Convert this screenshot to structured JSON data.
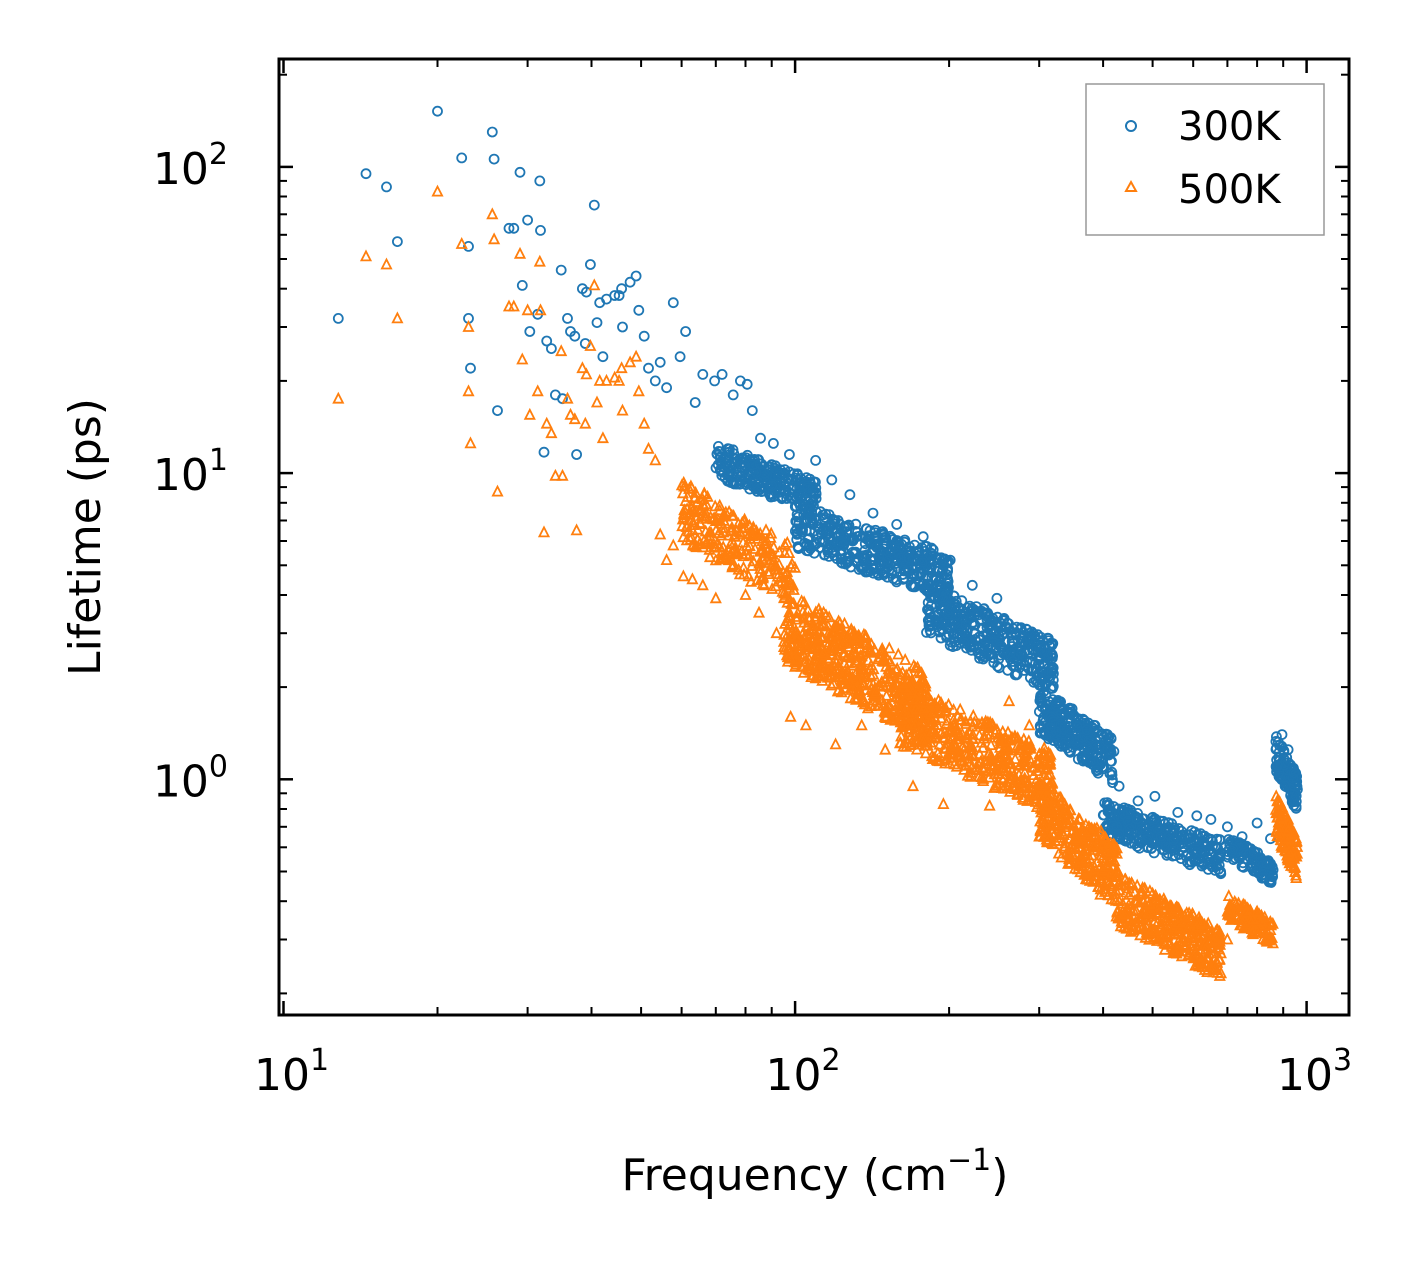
{
  "chart_data": {
    "type": "scatter",
    "title": "",
    "xlabel": "Frequency (cm",
    "xlabel_sup": "−1",
    "xlabel_suffix": ")",
    "ylabel": "Lifetime (ps)",
    "xscale": "log",
    "yscale": "log",
    "xlim": [
      9.8,
      1210
    ],
    "ylim": [
      0.17,
      225
    ],
    "x_ticks": [
      {
        "base": "10",
        "exp": "1",
        "value": 10
      },
      {
        "base": "10",
        "exp": "2",
        "value": 100
      },
      {
        "base": "10",
        "exp": "3",
        "value": 1000
      }
    ],
    "y_ticks": [
      {
        "base": "10",
        "exp": "0",
        "value": 1
      },
      {
        "base": "10",
        "exp": "1",
        "value": 10
      },
      {
        "base": "10",
        "exp": "2",
        "value": 100
      }
    ],
    "legend_position": "top-right",
    "series": [
      {
        "name": "300K",
        "marker": "circle",
        "color": "#1f77b4",
        "points": [
          [
            12.8,
            32
          ],
          [
            14.5,
            95
          ],
          [
            15.9,
            86
          ],
          [
            16.7,
            57
          ],
          [
            20.0,
            152
          ],
          [
            22.3,
            107
          ],
          [
            23.0,
            32
          ],
          [
            23.0,
            55
          ],
          [
            23.2,
            22
          ],
          [
            25.6,
            130
          ],
          [
            25.8,
            106
          ],
          [
            26.2,
            16
          ],
          [
            27.6,
            63
          ],
          [
            28.2,
            63
          ],
          [
            29.0,
            96
          ],
          [
            29.3,
            41
          ],
          [
            30.0,
            67
          ],
          [
            30.3,
            29
          ],
          [
            31.4,
            33
          ],
          [
            31.7,
            90
          ],
          [
            31.8,
            62
          ],
          [
            32.3,
            11.7
          ],
          [
            32.7,
            27
          ],
          [
            33.4,
            25.5
          ],
          [
            34.0,
            18
          ],
          [
            34.9,
            46
          ],
          [
            35.1,
            17.5
          ],
          [
            35.9,
            32
          ],
          [
            36.4,
            29
          ],
          [
            37.1,
            28
          ],
          [
            37.4,
            11.5
          ],
          [
            38.4,
            40
          ],
          [
            38.9,
            26.5
          ],
          [
            39.1,
            39
          ],
          [
            39.8,
            48
          ],
          [
            40.5,
            75
          ],
          [
            41.0,
            31
          ],
          [
            41.5,
            36
          ],
          [
            42.1,
            24
          ],
          [
            42.8,
            37
          ],
          [
            44.4,
            38
          ],
          [
            45.3,
            38
          ],
          [
            45.8,
            40
          ],
          [
            46.0,
            30
          ],
          [
            47.6,
            42
          ],
          [
            48.9,
            44
          ],
          [
            49.5,
            34
          ],
          [
            50.7,
            28
          ],
          [
            51.7,
            22
          ],
          [
            53.3,
            20
          ],
          [
            54.5,
            23
          ],
          [
            56.1,
            19
          ],
          [
            57.8,
            36
          ],
          [
            59.6,
            24
          ],
          [
            61.1,
            29
          ],
          [
            63.8,
            17
          ],
          [
            66.0,
            21
          ],
          [
            69.6,
            20
          ],
          [
            72.0,
            21
          ],
          [
            75.7,
            18
          ],
          [
            78.2,
            20
          ],
          [
            80.6,
            19.5
          ],
          [
            82.5,
            16
          ],
          [
            85.6,
            13
          ],
          [
            90.7,
            12.5
          ],
          [
            97.5,
            11.5
          ],
          [
            109.7,
            11
          ],
          [
            118.0,
            9.5
          ],
          [
            128.0,
            8.5
          ],
          [
            142.0,
            7.4
          ],
          [
            158.0,
            6.8
          ],
          [
            178.0,
            6.2
          ],
          [
            201.0,
            5.2
          ],
          [
            222.0,
            4.3
          ],
          [
            248.0,
            3.9
          ],
          [
            262.0,
            3.1
          ],
          [
            287.0,
            2.6
          ],
          [
            314.0,
            2.1
          ],
          [
            348.0,
            1.7
          ],
          [
            372.0,
            1.45
          ],
          [
            398.0,
            1.15
          ],
          [
            430.0,
            0.95
          ],
          [
            468.0,
            0.85
          ],
          [
            505.0,
            0.88
          ],
          [
            560.0,
            0.78
          ],
          [
            610.0,
            0.76
          ],
          [
            650.0,
            0.74
          ],
          [
            700.0,
            0.7
          ],
          [
            748.0,
            0.65
          ],
          [
            800.0,
            0.72
          ],
          [
            850.0,
            0.64
          ],
          [
            895.0,
            1.4
          ],
          [
            920.0,
            1.25
          ],
          [
            945.0,
            1.05
          ]
        ],
        "bands": [
          {
            "x": [
              70,
              110
            ],
            "y": [
              7.5,
              12.5
            ],
            "n": 260
          },
          {
            "x": [
              100,
              200
            ],
            "y": [
              4.0,
              8.0
            ],
            "n": 420
          },
          {
            "x": [
              180,
              320
            ],
            "y": [
              2.0,
              4.4
            ],
            "n": 420
          },
          {
            "x": [
              300,
              420
            ],
            "y": [
              1.0,
              2.0
            ],
            "n": 260
          },
          {
            "x": [
              400,
              680
            ],
            "y": [
              0.5,
              0.85
            ],
            "n": 320
          },
          {
            "x": [
              700,
              860
            ],
            "y": [
              0.46,
              0.66
            ],
            "n": 120
          },
          {
            "x": [
              870,
              960
            ],
            "y": [
              0.8,
              1.4
            ],
            "n": 120
          }
        ]
      },
      {
        "name": "500K",
        "marker": "triangle",
        "color": "#ff7f0e",
        "points": [
          [
            12.8,
            17.5
          ],
          [
            14.5,
            51
          ],
          [
            15.9,
            48
          ],
          [
            16.7,
            32
          ],
          [
            20.0,
            83
          ],
          [
            22.3,
            56
          ],
          [
            23.0,
            30
          ],
          [
            23.0,
            18.5
          ],
          [
            23.2,
            12.5
          ],
          [
            25.6,
            70
          ],
          [
            25.8,
            58
          ],
          [
            26.2,
            8.7
          ],
          [
            27.6,
            35
          ],
          [
            28.2,
            35
          ],
          [
            29.0,
            52
          ],
          [
            29.3,
            23.5
          ],
          [
            30.0,
            34
          ],
          [
            30.3,
            15.5
          ],
          [
            31.4,
            18.5
          ],
          [
            31.7,
            49
          ],
          [
            31.8,
            34
          ],
          [
            32.3,
            6.4
          ],
          [
            32.7,
            14.5
          ],
          [
            33.4,
            13.5
          ],
          [
            34.0,
            9.8
          ],
          [
            34.9,
            25
          ],
          [
            35.1,
            9.8
          ],
          [
            35.9,
            17.5
          ],
          [
            36.4,
            15.5
          ],
          [
            37.1,
            15
          ],
          [
            37.4,
            6.5
          ],
          [
            38.4,
            22
          ],
          [
            38.9,
            14.5
          ],
          [
            39.1,
            21
          ],
          [
            39.8,
            26
          ],
          [
            40.5,
            41
          ],
          [
            41.0,
            17
          ],
          [
            41.5,
            20
          ],
          [
            42.1,
            13
          ],
          [
            42.8,
            20
          ],
          [
            44.4,
            20.5
          ],
          [
            45.3,
            20
          ],
          [
            45.8,
            22
          ],
          [
            46.0,
            16
          ],
          [
            47.6,
            23
          ],
          [
            48.9,
            24
          ],
          [
            49.5,
            18.5
          ],
          [
            50.7,
            14.5
          ],
          [
            51.7,
            12
          ],
          [
            53.3,
            11
          ],
          [
            54.5,
            6.3
          ],
          [
            56.1,
            5.2
          ],
          [
            57.8,
            5.8
          ],
          [
            60.5,
            4.6
          ],
          [
            63.0,
            4.5
          ],
          [
            66.0,
            4.3
          ],
          [
            70.0,
            3.9
          ],
          [
            75.0,
            5.2
          ],
          [
            80.0,
            4.0
          ],
          [
            85.0,
            3.5
          ],
          [
            92.0,
            3.0
          ],
          [
            98.0,
            1.6
          ],
          [
            105.0,
            1.5
          ],
          [
            120.0,
            1.3
          ],
          [
            135.0,
            1.5
          ],
          [
            150.0,
            1.25
          ],
          [
            170.0,
            0.95
          ],
          [
            195.0,
            0.83
          ],
          [
            210.0,
            1.2
          ],
          [
            240.0,
            0.82
          ],
          [
            262.0,
            1.8
          ],
          [
            287.0,
            1.5
          ],
          [
            300.0,
            0.65
          ],
          [
            330.0,
            0.7
          ],
          [
            370.0,
            0.55
          ],
          [
            395.0,
            0.42
          ],
          [
            430.0,
            0.4
          ],
          [
            470.0,
            0.35
          ],
          [
            505.0,
            0.32
          ],
          [
            560.0,
            0.34
          ],
          [
            610.0,
            0.33
          ],
          [
            650.0,
            0.28
          ],
          [
            700.0,
            0.3
          ],
          [
            750.0,
            0.34
          ],
          [
            800.0,
            0.37
          ],
          [
            850.0,
            0.3
          ],
          [
            895.0,
            0.75
          ],
          [
            920.0,
            0.68
          ],
          [
            945.0,
            0.55
          ]
        ],
        "bands": [
          {
            "x": [
              60,
              100
            ],
            "y": [
              3.8,
              9.5
            ],
            "n": 240
          },
          {
            "x": [
              95,
              180
            ],
            "y": [
              1.4,
              4.2
            ],
            "n": 520
          },
          {
            "x": [
              160,
              320
            ],
            "y": [
              0.8,
              2.1
            ],
            "n": 480
          },
          {
            "x": [
              300,
              430
            ],
            "y": [
              0.4,
              1.0
            ],
            "n": 300
          },
          {
            "x": [
              420,
              680
            ],
            "y": [
              0.23,
              0.5
            ],
            "n": 360
          },
          {
            "x": [
              700,
              860
            ],
            "y": [
              0.29,
              0.42
            ],
            "n": 120
          },
          {
            "x": [
              870,
              960
            ],
            "y": [
              0.48,
              0.9
            ],
            "n": 120
          }
        ]
      }
    ]
  }
}
